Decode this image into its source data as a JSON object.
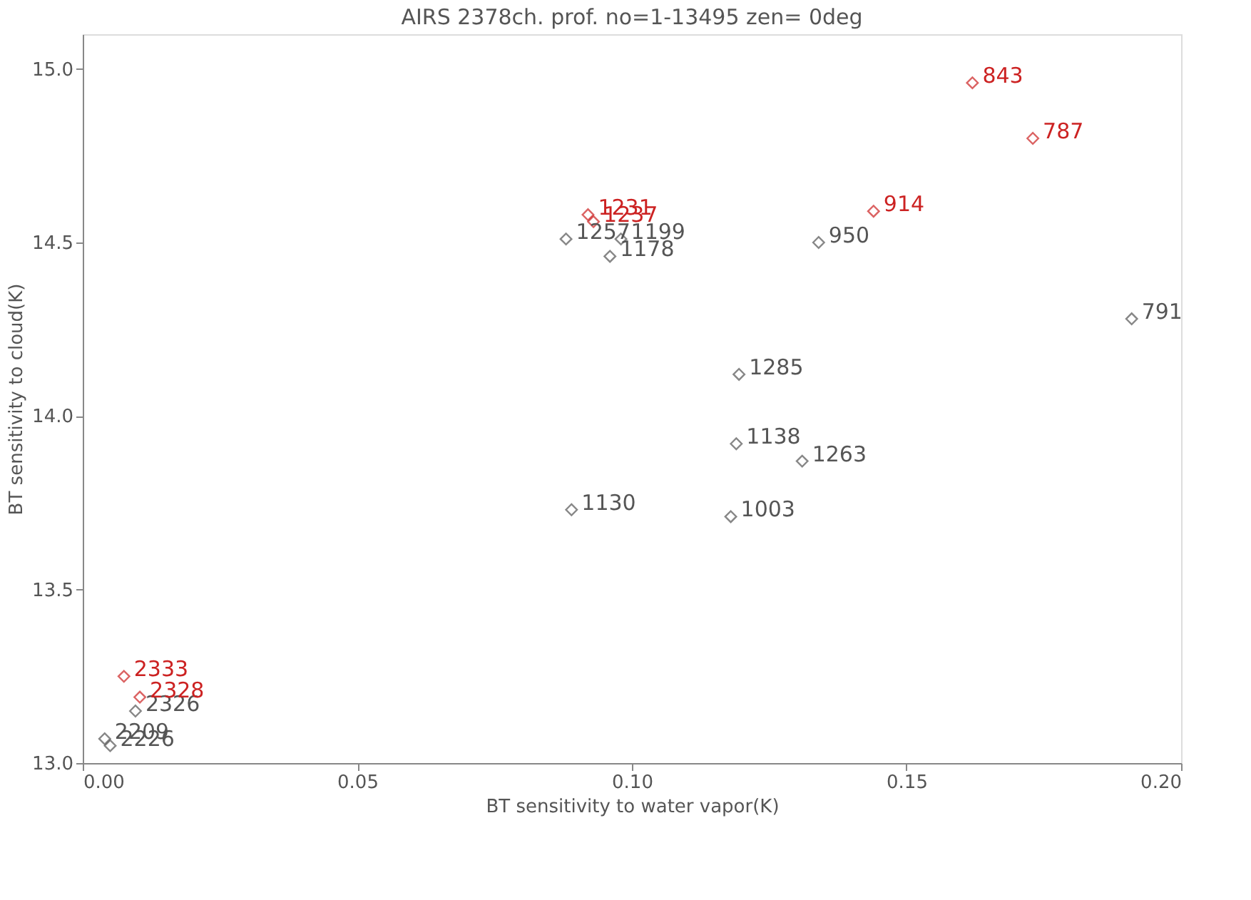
{
  "chart_data": {
    "type": "scatter",
    "title": "AIRS 2378ch. prof. no=1-13495 zen= 0deg",
    "xlabel": "BT sensitivity to water vapor(K)",
    "ylabel": "BT sensitivity to cloud(K)",
    "xlim": [
      0,
      0.2
    ],
    "ylim": [
      13.0,
      15.1
    ],
    "xticks": [
      {
        "value": 0,
        "label": "0.00"
      },
      {
        "value": 0.05,
        "label": "0.05"
      },
      {
        "value": 0.1,
        "label": "0.10"
      },
      {
        "value": 0.15,
        "label": "0.15"
      },
      {
        "value": 0.2,
        "label": "0.20"
      }
    ],
    "yticks": [
      {
        "value": 13,
        "label": "13.0"
      },
      {
        "value": 13.5,
        "label": "13.5"
      },
      {
        "value": 14,
        "label": "14.0"
      },
      {
        "value": 14.5,
        "label": "14.5"
      },
      {
        "value": 15,
        "label": "15.0"
      }
    ],
    "marker": "diamond",
    "grid": false,
    "legend": false,
    "series": [
      {
        "color": "#555555",
        "x": [
          0.134,
          0.191,
          0.1195,
          0.119,
          0.131,
          0.118,
          0.089,
          0.088,
          0.098,
          0.096,
          0.0096,
          0.004,
          0.005
        ],
        "values": [
          14.5,
          14.28,
          14.12,
          13.92,
          13.87,
          13.71,
          13.73,
          14.51,
          14.51,
          14.46,
          13.15,
          13.07,
          13.05
        ]
      },
      {
        "color": "#cc2222",
        "x": [
          0.162,
          0.173,
          0.144,
          0.092,
          0.093,
          0.0075,
          0.0104
        ],
        "values": [
          14.96,
          14.8,
          14.59,
          14.58,
          14.56,
          13.25,
          13.19
        ]
      }
    ],
    "annotations": [
      {
        "text": "950",
        "x": 0.134,
        "y": 14.5
      },
      {
        "text": "791",
        "x": 0.191,
        "y": 14.28
      },
      {
        "text": "1285",
        "x": 0.1195,
        "y": 14.12
      },
      {
        "text": "1138",
        "x": 0.119,
        "y": 13.92
      },
      {
        "text": "1263",
        "x": 0.131,
        "y": 13.87
      },
      {
        "text": "1003",
        "x": 0.118,
        "y": 13.71
      },
      {
        "text": "1130",
        "x": 0.089,
        "y": 13.73
      },
      {
        "text": "1257",
        "x": 0.088,
        "y": 14.51
      },
      {
        "text": "1199",
        "x": 0.098,
        "y": 14.51
      },
      {
        "text": "1178",
        "x": 0.096,
        "y": 14.46
      },
      {
        "text": "2326",
        "x": 0.0096,
        "y": 13.15
      },
      {
        "text": "2209",
        "x": 0.004,
        "y": 13.07
      },
      {
        "text": "2226",
        "x": 0.005,
        "y": 13.05
      },
      {
        "text": "843",
        "x": 0.162,
        "y": 14.96
      },
      {
        "text": "787",
        "x": 0.173,
        "y": 14.8
      },
      {
        "text": "914",
        "x": 0.144,
        "y": 14.59
      },
      {
        "text": "1231",
        "x": 0.092,
        "y": 14.58
      },
      {
        "text": "1237",
        "x": 0.093,
        "y": 14.56
      },
      {
        "text": "2333",
        "x": 0.0075,
        "y": 13.25
      },
      {
        "text": "2328",
        "x": 0.0104,
        "y": 13.19
      }
    ]
  }
}
